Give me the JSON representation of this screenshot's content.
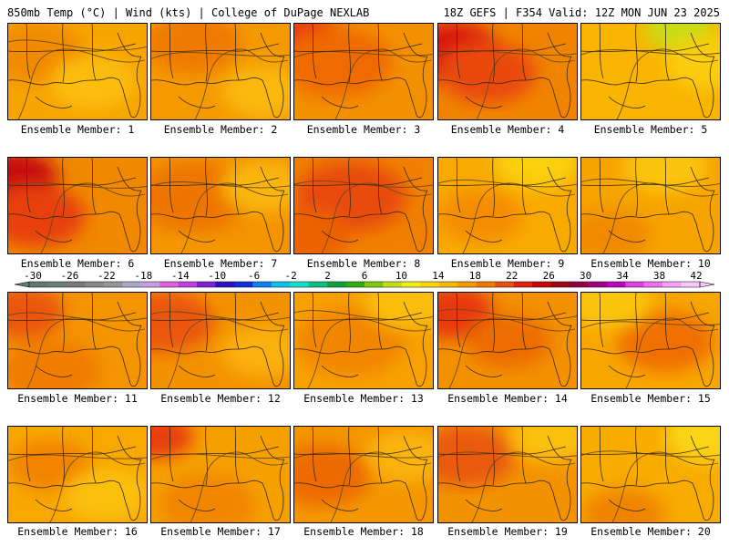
{
  "header": {
    "left": "850mb Temp (°C) | Wind (kts) | College of DuPage NEXLAB",
    "right": "18Z GEFS | F354 Valid: 12Z MON JUN 23 2025"
  },
  "caption_prefix": "Ensemble Member: ",
  "members": [
    {
      "label": "Ensemble Member: 1",
      "base": "#f7a600",
      "blobs": [
        [
          "#f28a00",
          0.2,
          0.3,
          0.35
        ],
        [
          "#fbbe10",
          0.6,
          0.6,
          0.3
        ]
      ]
    },
    {
      "label": "Ensemble Member: 2",
      "base": "#f49a00",
      "blobs": [
        [
          "#ef7a00",
          0.3,
          0.2,
          0.35
        ],
        [
          "#fbb80a",
          0.8,
          0.7,
          0.3
        ]
      ]
    },
    {
      "label": "Ensemble Member: 3",
      "base": "#f39000",
      "blobs": [
        [
          "#e8340c",
          0.05,
          0.15,
          0.3
        ],
        [
          "#ef6a00",
          0.3,
          0.4,
          0.4
        ]
      ]
    },
    {
      "label": "Ensemble Member: 4",
      "base": "#f08400",
      "blobs": [
        [
          "#d8140c",
          0.1,
          0.3,
          0.35
        ],
        [
          "#ea4a08",
          0.35,
          0.5,
          0.35
        ]
      ]
    },
    {
      "label": "Ensemble Member: 5",
      "base": "#f9b400",
      "blobs": [
        [
          "#c8dc18",
          0.7,
          0.05,
          0.25
        ],
        [
          "#fbcd10",
          0.9,
          0.4,
          0.3
        ]
      ]
    },
    {
      "label": "Ensemble Member: 6",
      "base": "#f08800",
      "blobs": [
        [
          "#c80a0a",
          0.05,
          0.2,
          0.3
        ],
        [
          "#e84010",
          0.2,
          0.6,
          0.35
        ]
      ]
    },
    {
      "label": "Ensemble Member: 7",
      "base": "#f39400",
      "blobs": [
        [
          "#ee7400",
          0.3,
          0.4,
          0.4
        ],
        [
          "#fab60a",
          0.8,
          0.3,
          0.3
        ]
      ]
    },
    {
      "label": "Ensemble Member: 8",
      "base": "#f08000",
      "blobs": [
        [
          "#e84c0c",
          0.4,
          0.4,
          0.4
        ],
        [
          "#ec6206",
          0.1,
          0.8,
          0.3
        ]
      ]
    },
    {
      "label": "Ensemble Member: 9",
      "base": "#f8aa00",
      "blobs": [
        [
          "#fbd010",
          0.7,
          0.05,
          0.3
        ],
        [
          "#f48c00",
          0.3,
          0.6,
          0.3
        ]
      ]
    },
    {
      "label": "Ensemble Member: 10",
      "base": "#f7a400",
      "blobs": [
        [
          "#fbc40a",
          0.6,
          0.1,
          0.3
        ],
        [
          "#f18a00",
          0.2,
          0.8,
          0.3
        ]
      ]
    },
    {
      "label": "Ensemble Member: 11",
      "base": "#f49400",
      "blobs": [
        [
          "#ea5608",
          0.1,
          0.2,
          0.3
        ],
        [
          "#f07c00",
          0.3,
          0.8,
          0.35
        ]
      ]
    },
    {
      "label": "Ensemble Member: 12",
      "base": "#f39200",
      "blobs": [
        [
          "#ea560a",
          0.1,
          0.3,
          0.35
        ],
        [
          "#fab00a",
          0.8,
          0.6,
          0.3
        ]
      ]
    },
    {
      "label": "Ensemble Member: 13",
      "base": "#f7a200",
      "blobs": [
        [
          "#f28600",
          0.4,
          0.5,
          0.4
        ],
        [
          "#fbbe10",
          0.8,
          0.1,
          0.3
        ]
      ]
    },
    {
      "label": "Ensemble Member: 14",
      "base": "#f39000",
      "blobs": [
        [
          "#e8380c",
          0.1,
          0.2,
          0.3
        ],
        [
          "#ec6c06",
          0.5,
          0.5,
          0.3
        ]
      ]
    },
    {
      "label": "Ensemble Member: 15",
      "base": "#f8a600",
      "blobs": [
        [
          "#ef7000",
          0.6,
          0.5,
          0.35
        ],
        [
          "#fbc40a",
          0.2,
          0.1,
          0.3
        ]
      ]
    },
    {
      "label": "Ensemble Member: 16",
      "base": "#f8a800",
      "blobs": [
        [
          "#f28400",
          0.3,
          0.4,
          0.3
        ],
        [
          "#fbc00c",
          0.7,
          0.7,
          0.3
        ]
      ]
    },
    {
      "label": "Ensemble Member: 17",
      "base": "#f6a000",
      "blobs": [
        [
          "#e84010",
          0.05,
          0.1,
          0.25
        ],
        [
          "#f28600",
          0.4,
          0.8,
          0.35
        ]
      ]
    },
    {
      "label": "Ensemble Member: 18",
      "base": "#f49600",
      "blobs": [
        [
          "#ec6a04",
          0.2,
          0.5,
          0.35
        ],
        [
          "#fab40a",
          0.8,
          0.3,
          0.3
        ]
      ]
    },
    {
      "label": "Ensemble Member: 19",
      "base": "#f39200",
      "blobs": [
        [
          "#ea5a08",
          0.2,
          0.3,
          0.35
        ],
        [
          "#fbc00e",
          0.8,
          0.1,
          0.3
        ]
      ]
    },
    {
      "label": "Ensemble Member: 20",
      "base": "#f8ac00",
      "blobs": [
        [
          "#fbd412",
          0.9,
          0.1,
          0.3
        ],
        [
          "#f08400",
          0.3,
          0.9,
          0.3
        ]
      ]
    }
  ],
  "colorbar": {
    "ticks": [
      "-30",
      "-26",
      "-22",
      "-18",
      "-14",
      "-10",
      "-6",
      "-2",
      "2",
      "6",
      "10",
      "14",
      "18",
      "22",
      "26",
      "30",
      "34",
      "38",
      "42"
    ],
    "colors": [
      "#607870",
      "#6e7e7a",
      "#7a7a7a",
      "#888888",
      "#969696",
      "#a8a8c8",
      "#c8a0e0",
      "#e060e0",
      "#c040e0",
      "#8020d0",
      "#3010c0",
      "#1030e0",
      "#1080f0",
      "#10c0e8",
      "#10e0c8",
      "#10c080",
      "#10a040",
      "#30b010",
      "#80c810",
      "#c0e010",
      "#f0f010",
      "#f8d800",
      "#f8b800",
      "#f89800",
      "#f07800",
      "#e85010",
      "#e02010",
      "#c80808",
      "#a00810",
      "#900040",
      "#a00080",
      "#c000c0",
      "#e040e0",
      "#f070f0",
      "#f8a0f8",
      "#f8c8f8"
    ]
  }
}
